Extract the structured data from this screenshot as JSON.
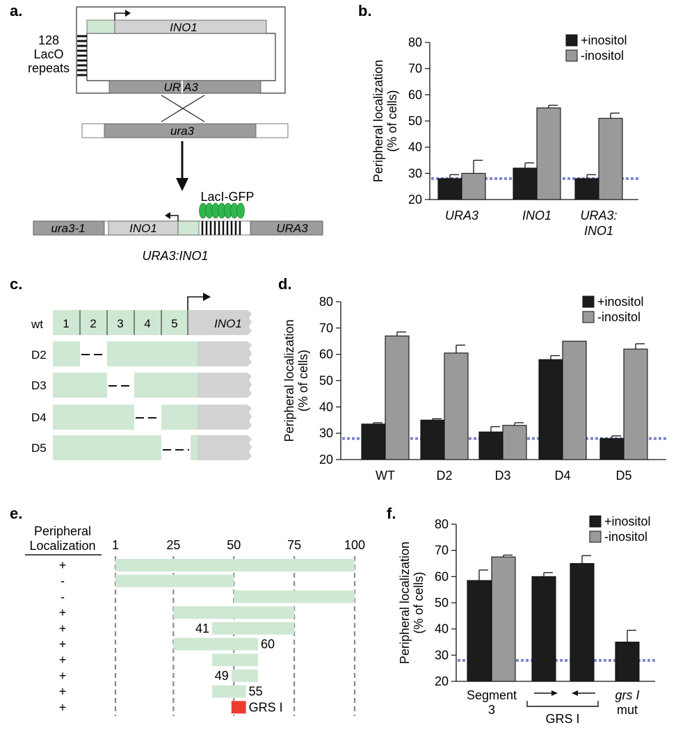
{
  "colors": {
    "plus_inositol": "#1c1c1c",
    "minus_inositol": "#9a9a9a",
    "baseline": "#7d86c9",
    "promoter_green": "#cfe8d3",
    "gene_gray": "#d2d2d2",
    "ura_dark": "#9c9c9c",
    "lacI_green": "#2eb84c",
    "grs_red": "#ee3b2f"
  },
  "panel_a": {
    "label": "a.",
    "lacO_label_1": "128",
    "lacO_label_2": "LacO",
    "lacO_label_3": "repeats",
    "plasmid_gene": "INO1",
    "plasmid_marker_left": "UR",
    "plasmid_marker_right": "A3",
    "genomic_locus": "ura3",
    "lacI_label": "LacI-GFP",
    "result_left": "ura3-1",
    "result_gene": "INO1",
    "result_right": "URA3",
    "result_caption": "URA3:INO1"
  },
  "panel_c": {
    "label": "c.",
    "row_labels": [
      "wt",
      "D2",
      "D3",
      "D4",
      "D5"
    ],
    "segments": [
      "1",
      "2",
      "3",
      "4",
      "5"
    ],
    "gene": "INO1"
  },
  "panel_e": {
    "label": "e.",
    "header_1": "Peripheral",
    "header_2": "Localization",
    "axis_ticks": [
      "1",
      "25",
      "50",
      "75",
      "100"
    ],
    "signs": [
      "+",
      "-",
      "-",
      "+",
      "+",
      "+",
      "+",
      "+",
      "+",
      "+"
    ],
    "fragments": [
      {
        "start": 1,
        "end": 100
      },
      {
        "start": 1,
        "end": 50
      },
      {
        "start": 50,
        "end": 100
      },
      {
        "start": 25,
        "end": 75
      },
      {
        "start": 41,
        "end": 75,
        "label": "41",
        "label_side": "left"
      },
      {
        "start": 25,
        "end": 60,
        "label": "60",
        "label_side": "right"
      },
      {
        "start": 41,
        "end": 60
      },
      {
        "start": 49,
        "end": 60,
        "label": "49",
        "label_side": "left"
      },
      {
        "start": 41,
        "end": 55,
        "label": "55",
        "label_side": "right"
      },
      {
        "start": 49,
        "end": 55,
        "label": "GRS I",
        "label_side": "right",
        "highlight": true
      }
    ]
  },
  "chart_data": [
    {
      "panel": "b.",
      "type": "bar",
      "ylabel_line1": "Peripheral localization",
      "ylabel_line2": "(% of cells)",
      "ylim": [
        20,
        80
      ],
      "yticks": [
        "20",
        "30",
        "40",
        "50",
        "60",
        "70",
        "80"
      ],
      "baseline": 28,
      "categories": [
        [
          "URA3"
        ],
        [
          "INO1"
        ],
        [
          "URA3:",
          "INO1"
        ]
      ],
      "category_italic": true,
      "series": [
        {
          "name": "+inositol",
          "values": [
            28,
            32,
            28
          ],
          "errors": [
            1.5,
            2,
            1.5
          ]
        },
        {
          "name": "-inositol",
          "values": [
            30,
            55,
            51
          ],
          "errors": [
            5,
            1,
            2
          ]
        }
      ]
    },
    {
      "panel": "d.",
      "type": "bar",
      "ylabel_line1": "Peripheral localization",
      "ylabel_line2": "(% of cells)",
      "ylim": [
        20,
        80
      ],
      "yticks": [
        "20",
        "30",
        "40",
        "50",
        "60",
        "70",
        "80"
      ],
      "baseline": 28,
      "categories": [
        [
          "WT"
        ],
        [
          "D2"
        ],
        [
          "D3"
        ],
        [
          "D4"
        ],
        [
          "D5"
        ]
      ],
      "category_italic": false,
      "series": [
        {
          "name": "+inositol",
          "values": [
            33.5,
            35,
            30.5,
            58,
            28
          ],
          "errors": [
            0.5,
            0.5,
            2,
            1.5,
            1
          ]
        },
        {
          "name": "-inositol",
          "values": [
            67,
            60.5,
            33,
            65,
            62
          ],
          "errors": [
            1.5,
            3,
            1,
            0,
            2
          ]
        }
      ]
    },
    {
      "panel": "f.",
      "type": "bar",
      "ylabel_line1": "Peripheral localization",
      "ylabel_line2": "(% of cells)",
      "ylim": [
        20,
        80
      ],
      "yticks": [
        "20",
        "30",
        "40",
        "50",
        "60",
        "70",
        "80"
      ],
      "baseline": 28,
      "series_names": [
        "+inositol",
        "-inositol"
      ],
      "bars": [
        {
          "series": 0,
          "value": 58.5,
          "error": 4
        },
        {
          "series": 1,
          "value": 67.5,
          "error": 0.7
        },
        {
          "series": 0,
          "value": 60,
          "error": 1.5
        },
        {
          "series": 0,
          "value": 65,
          "error": 3
        },
        {
          "series": 0,
          "value": 35,
          "error": 4.5
        }
      ],
      "group_labels": [
        {
          "line1": "Segment",
          "line2": "3",
          "italic": false
        },
        {
          "line1": "GRS I",
          "line2": "",
          "italic": false
        },
        {
          "line1": "grs I",
          "line2": "mut",
          "italic_first": true
        }
      ]
    }
  ]
}
